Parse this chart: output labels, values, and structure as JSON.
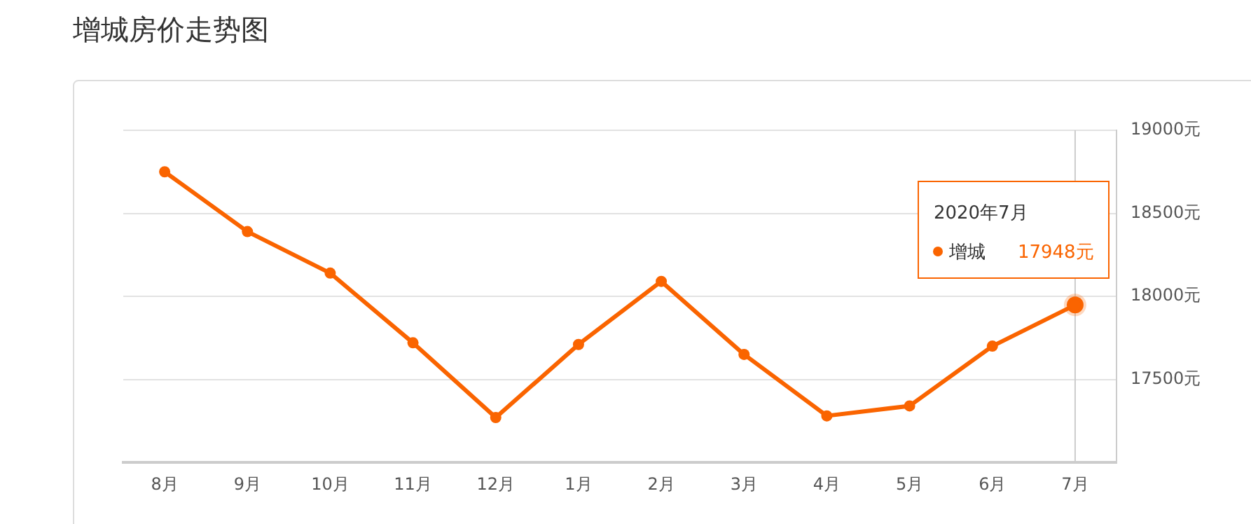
{
  "chart_data": {
    "type": "line",
    "title": "增城房价走势图",
    "categories": [
      "8月",
      "9月",
      "10月",
      "11月",
      "12月",
      "1月",
      "2月",
      "3月",
      "4月",
      "5月",
      "6月",
      "7月"
    ],
    "series": [
      {
        "name": "增城",
        "color": "#fa6400",
        "values": [
          18750,
          18390,
          18140,
          17720,
          17270,
          17710,
          18090,
          17650,
          17280,
          17340,
          17700,
          17948
        ],
        "value_labels": [
          null,
          null,
          null,
          null,
          null,
          null,
          null,
          null,
          null,
          null,
          null,
          "17948元"
        ]
      }
    ],
    "ylim": [
      17000,
      19000
    ],
    "yticks": [
      {
        "value": 17500,
        "label": "17500元"
      },
      {
        "value": 18000,
        "label": "18000元"
      },
      {
        "value": 18500,
        "label": "18500元"
      },
      {
        "value": 19000,
        "label": "19000元"
      }
    ],
    "grid": "y",
    "marker": "circle",
    "line_style": "solid",
    "ref_lines": [
      {
        "axis": "x",
        "value": "7月",
        "color": "#cccccc"
      }
    ],
    "annotations": [
      "2020年7月"
    ]
  }
}
